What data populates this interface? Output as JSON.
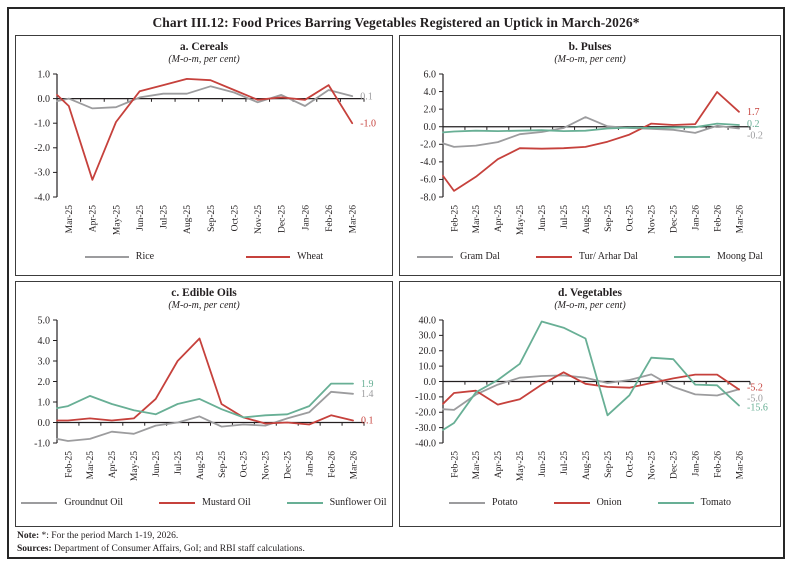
{
  "window": {
    "title": "Chart III.12: Food Prices Barring Vegetables Registered an Uptick in March-2026*"
  },
  "footer": {
    "note_label": "Note:",
    "note_text": "*: For the period March 1-19, 2026.",
    "sources_label": "Sources:",
    "sources_text": "Department of Consumer Affairs, GoI; and RBI staff calculations."
  },
  "palette": {
    "gray": "#9c9c9e",
    "red": "#c6413c",
    "green": "#68af95",
    "axis": "#231f20"
  },
  "chart_data": [
    {
      "id": "cereals",
      "type": "line",
      "title": "a. Cereals",
      "subtitle": "(M-o-m, per cent)",
      "categories": [
        "Mar-25",
        "Apr-25",
        "May-25",
        "Jun-25",
        "Jul-25",
        "Aug-25",
        "Sep-25",
        "Oct-25",
        "Nov-25",
        "Dec-25",
        "Jan-26",
        "Feb-26",
        "Mar-26"
      ],
      "ylim": [
        -4,
        1
      ],
      "ytick_step": 1,
      "ytick_labels": [
        "1.0",
        "0.0",
        "-1.0",
        "-2.0",
        "-3.0",
        "-4.0"
      ],
      "legend_position": "bottom",
      "grid": false,
      "series": [
        {
          "name": "Rice",
          "color": "gray",
          "edge_start": -0.1,
          "values": [
            0.0,
            -0.4,
            -0.35,
            0.05,
            0.2,
            0.2,
            0.5,
            0.25,
            -0.15,
            0.15,
            -0.3,
            0.35,
            0.1
          ],
          "end_label": "0.1"
        },
        {
          "name": "Wheat",
          "color": "red",
          "edge_start": 0.15,
          "values": [
            -0.3,
            -3.3,
            -0.95,
            0.3,
            0.55,
            0.8,
            0.75,
            0.35,
            -0.05,
            0.05,
            -0.05,
            0.55,
            -1.0
          ],
          "end_label": "-1.0"
        }
      ]
    },
    {
      "id": "pulses",
      "type": "line",
      "title": "b. Pulses",
      "subtitle": "(M-o-m, per cent)",
      "categories": [
        "Feb-25",
        "Mar-25",
        "Apr-25",
        "May-25",
        "Jun-25",
        "Jul-25",
        "Aug-25",
        "Sep-25",
        "Oct-25",
        "Nov-25",
        "Dec-25",
        "Jan-26",
        "Feb-26",
        "Mar-26"
      ],
      "ylim": [
        -8,
        6
      ],
      "ytick_step": 2,
      "ytick_labels": [
        "6.0",
        "4.0",
        "2.0",
        "0.0",
        "-2.0",
        "-4.0",
        "-6.0",
        "-8.0"
      ],
      "legend_position": "bottom",
      "grid": false,
      "series": [
        {
          "name": "Gram Dal",
          "color": "gray",
          "edge_start": -1.9,
          "values": [
            -2.3,
            -2.15,
            -1.75,
            -0.85,
            -0.6,
            -0.15,
            1.1,
            0.05,
            -0.15,
            -0.25,
            -0.35,
            -0.7,
            0.1,
            -0.2
          ],
          "end_label": "-0.2"
        },
        {
          "name": "Tur/ Arhar Dal",
          "color": "red",
          "edge_start": -5.6,
          "values": [
            -7.3,
            -5.7,
            -3.7,
            -2.45,
            -2.5,
            -2.45,
            -2.3,
            -1.7,
            -0.9,
            0.35,
            0.2,
            0.3,
            3.95,
            1.7
          ],
          "end_label": "1.7"
        },
        {
          "name": "Moong Dal",
          "color": "green",
          "edge_start": -0.65,
          "values": [
            -0.55,
            -0.45,
            -0.5,
            -0.45,
            -0.4,
            -0.5,
            -0.45,
            -0.2,
            -0.1,
            -0.15,
            -0.1,
            -0.05,
            0.35,
            0.2
          ],
          "end_label": "0.2"
        }
      ]
    },
    {
      "id": "edible-oils",
      "type": "line",
      "title": "c. Edible Oils",
      "subtitle": "(M-o-m, per cent)",
      "categories": [
        "Feb-25",
        "Mar-25",
        "Apr-25",
        "May-25",
        "Jun-25",
        "Jul-25",
        "Aug-25",
        "Sep-25",
        "Oct-25",
        "Nov-25",
        "Dec-25",
        "Jan-26",
        "Feb-26",
        "Mar-26"
      ],
      "ylim": [
        -1,
        5
      ],
      "ytick_step": 1,
      "ytick_labels": [
        "5.0",
        "4.0",
        "3.0",
        "2.0",
        "1.0",
        "0.0",
        "-1.0"
      ],
      "legend_position": "bottom",
      "grid": false,
      "series": [
        {
          "name": "Groundnut Oil",
          "color": "gray",
          "edge_start": -0.8,
          "values": [
            -0.9,
            -0.8,
            -0.45,
            -0.55,
            -0.15,
            0.0,
            0.3,
            -0.2,
            -0.1,
            -0.15,
            0.2,
            0.5,
            1.5,
            1.4
          ],
          "end_label": "1.4"
        },
        {
          "name": "Mustard Oil",
          "color": "red",
          "edge_start": 0.1,
          "values": [
            0.1,
            0.2,
            0.1,
            0.2,
            1.15,
            3.0,
            4.1,
            0.9,
            0.25,
            -0.05,
            0.0,
            -0.1,
            0.35,
            0.1
          ],
          "end_label": "0.1"
        },
        {
          "name": "Sunflower Oil",
          "color": "green",
          "edge_start": 0.7,
          "values": [
            0.8,
            1.3,
            0.9,
            0.6,
            0.4,
            0.9,
            1.15,
            0.65,
            0.25,
            0.35,
            0.4,
            0.8,
            1.9,
            1.9
          ],
          "end_label": "1.9"
        }
      ]
    },
    {
      "id": "vegetables",
      "type": "line",
      "title": "d. Vegetables",
      "subtitle": "(M-o-m, per cent)",
      "categories": [
        "Feb-25",
        "Mar-25",
        "Apr-25",
        "May-25",
        "Jun-25",
        "Jul-25",
        "Aug-25",
        "Sep-25",
        "Oct-25",
        "Nov-25",
        "Dec-25",
        "Jan-26",
        "Feb-26",
        "Mar-26"
      ],
      "ylim": [
        -40,
        40
      ],
      "ytick_step": 10,
      "ytick_labels": [
        "40.0",
        "30.0",
        "20.0",
        "10.0",
        "0.0",
        "-10.0",
        "-20.0",
        "-30.0",
        "-40.0"
      ],
      "legend_position": "bottom",
      "grid": false,
      "series": [
        {
          "name": "Potato",
          "color": "gray",
          "edge_start": -18.0,
          "values": [
            -18.5,
            -8.5,
            -2.0,
            2.5,
            3.6,
            4.0,
            2.5,
            -1.0,
            1.0,
            4.6,
            -3.5,
            -8.4,
            -9.1,
            -5.0
          ],
          "end_label": "-5.0"
        },
        {
          "name": "Onion",
          "color": "red",
          "edge_start": -14.5,
          "values": [
            -7.5,
            -6.0,
            -15.0,
            -11.5,
            -2.0,
            6.0,
            -1.5,
            -3.5,
            -4.0,
            -1.0,
            2.0,
            4.5,
            4.5,
            -5.2
          ],
          "end_label": "-5.2"
        },
        {
          "name": "Tomato",
          "color": "green",
          "edge_start": -31.5,
          "values": [
            -27.0,
            -7.0,
            1.0,
            11.5,
            39.0,
            35.0,
            28.0,
            -22.0,
            -9.0,
            15.5,
            14.5,
            -2.0,
            -2.5,
            -15.6
          ],
          "end_label": "-15.6"
        }
      ]
    }
  ]
}
